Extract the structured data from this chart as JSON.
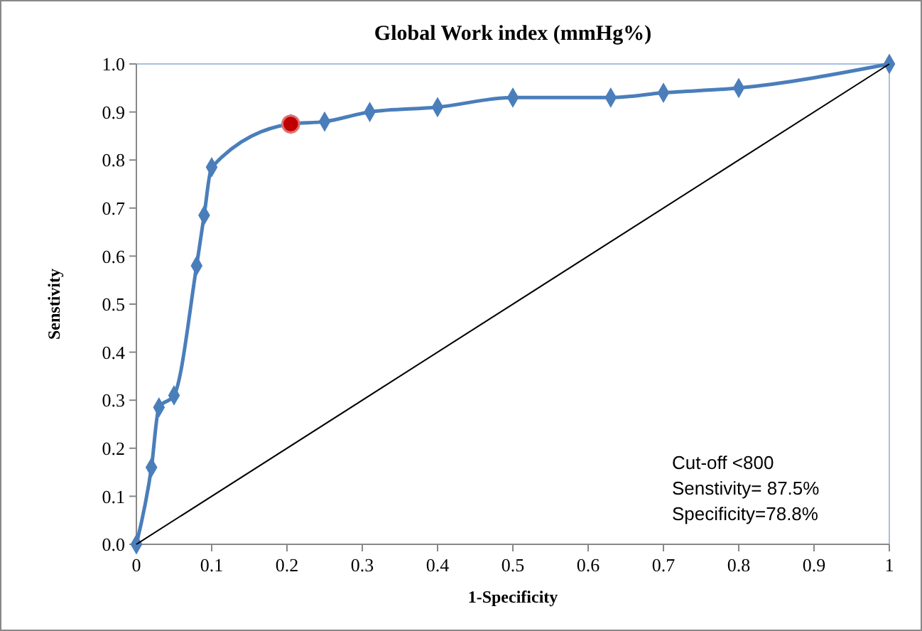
{
  "chart_data": {
    "type": "line",
    "title": "Global Work index (mmHg%)",
    "xlabel": "1-Specificity",
    "ylabel": "Senstivity",
    "xlim": [
      0,
      1
    ],
    "ylim": [
      0,
      1
    ],
    "xticks": [
      0,
      0.1,
      0.2,
      0.3,
      0.4,
      0.5,
      0.6,
      0.7,
      0.8,
      0.9,
      1
    ],
    "yticks": [
      {
        "value": 0,
        "label": "0.0"
      },
      {
        "value": 0.1,
        "label": "0.1"
      },
      {
        "value": 0.2,
        "label": "0.2"
      },
      {
        "value": 0.3,
        "label": "0.3"
      },
      {
        "value": 0.4,
        "label": "0.4"
      },
      {
        "value": 0.5,
        "label": "0.5"
      },
      {
        "value": 0.6,
        "label": "0.6"
      },
      {
        "value": 0.7,
        "label": "0.7"
      },
      {
        "value": 0.8,
        "label": "0.8"
      },
      {
        "value": 0.9,
        "label": "0.9"
      },
      {
        "value": 1,
        "label": "1.0"
      }
    ],
    "grid": false,
    "line_style": "solid",
    "series": [
      {
        "color": "#4a7ebb",
        "marker": "diamond",
        "x": [
          0,
          0.02,
          0.03,
          0.05,
          0.08,
          0.09,
          0.1,
          0.205,
          0.25,
          0.31,
          0.4,
          0.5,
          0.63,
          0.7,
          0.8,
          1
        ],
        "values": [
          0,
          0.16,
          0.285,
          0.31,
          0.58,
          0.685,
          0.785,
          0.875,
          0.88,
          0.9,
          0.91,
          0.93,
          0.93,
          0.94,
          0.95,
          1
        ]
      },
      {
        "color": "#000000",
        "marker": "none",
        "x": [
          0,
          1
        ],
        "values": [
          0,
          1
        ]
      },
      {
        "type": "scatter",
        "color": "#c00000",
        "marker": "circle",
        "x": [
          0.205
        ],
        "values": [
          0.875
        ]
      }
    ],
    "annotations": [
      "Cut-off <800",
      "Senstivity= 87.5%",
      "Specificity=78.8%"
    ]
  }
}
